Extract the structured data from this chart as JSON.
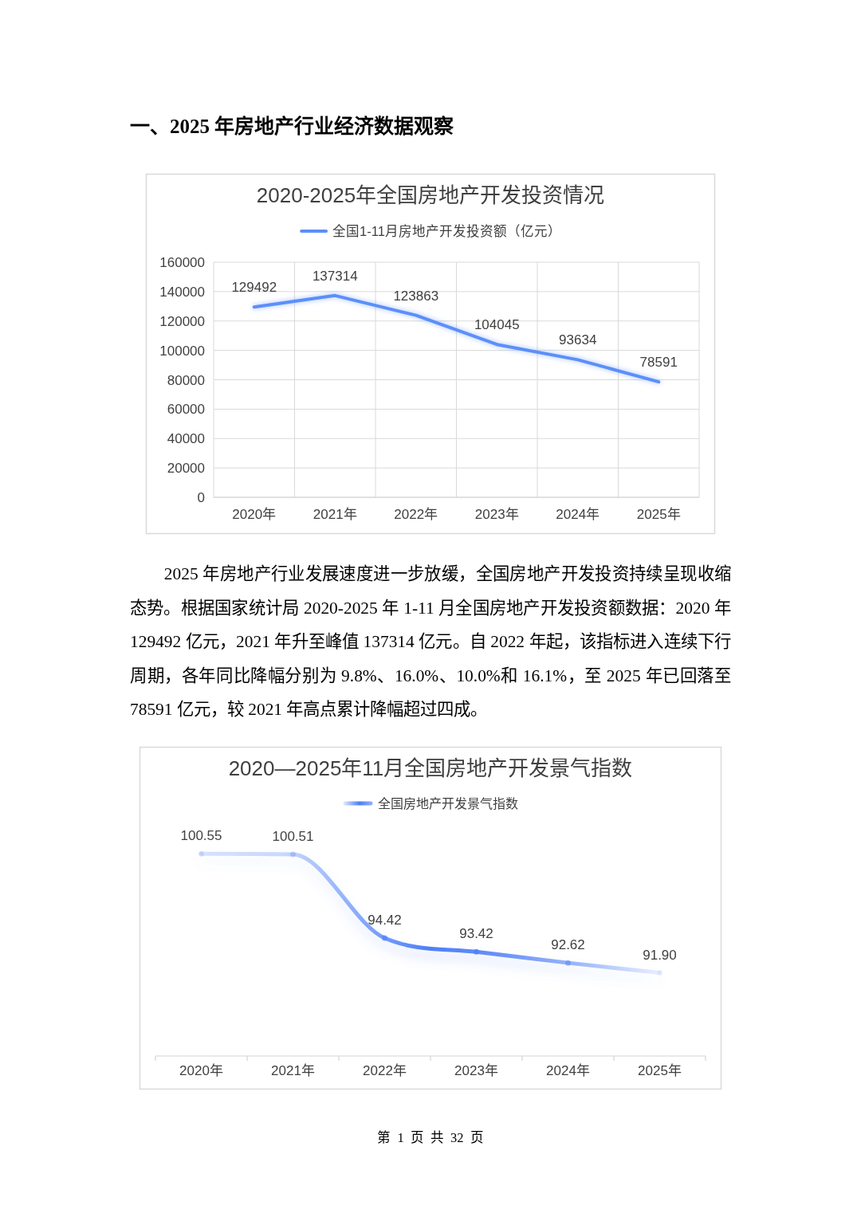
{
  "chart_data": [
    {
      "type": "line",
      "title": "2020-2025年全国房地产开发投资情况",
      "categories": [
        "2020年",
        "2021年",
        "2022年",
        "2023年",
        "2024年",
        "2025年"
      ],
      "series": [
        {
          "name": "全国1-11月房地产开发投资额（亿元）",
          "color": "#5b8ff9",
          "values": [
            129492,
            137314,
            123863,
            104045,
            93634,
            78591
          ]
        }
      ],
      "ylim": [
        0,
        160000
      ],
      "yticks": [
        0,
        20000,
        40000,
        60000,
        80000,
        100000,
        120000,
        140000,
        160000
      ],
      "grid": true,
      "legend": "top",
      "marker": "none",
      "line_style": "solid",
      "data_labels": true,
      "annotations": [
        "一、2025 年房地产行业经济数据观察",
        "2025 年房地产行业发展速度进一步放缓，全国房地产开发投资持续呈现收缩态势。根据国家统计局 2020-2025 年 1-11 月全国房地产开发投资额数据：2020 年 129492 亿元，2021 年升至峰值 137314 亿元。自 2022 年起，该指标进入连续下行周期，各年同比降幅分别为 9.8%、16.0%、10.0%和 16.1%，至 2025 年已回落至 78591 亿元，较 2021 年高点累计降幅超过四成。"
      ]
    },
    {
      "type": "line",
      "title": "2020—2025年11月全国房地产开发景气指数",
      "categories": [
        "2020年",
        "2021年",
        "2022年",
        "2023年",
        "2024年",
        "2025年"
      ],
      "series": [
        {
          "name": "全国房地产开发景气指数",
          "color": "#4e7ff7",
          "values": [
            100.55,
            100.51,
            94.42,
            93.42,
            92.62,
            91.9
          ],
          "value_labels": [
            "100.55",
            "100.51",
            "94.42",
            "93.42",
            "92.62",
            "91.90"
          ]
        }
      ],
      "legend": "top",
      "marker": "circle",
      "line_style": "solid",
      "tick_labels": "x",
      "annotations": [
        "第 1 页 共 32 页"
      ]
    }
  ]
}
